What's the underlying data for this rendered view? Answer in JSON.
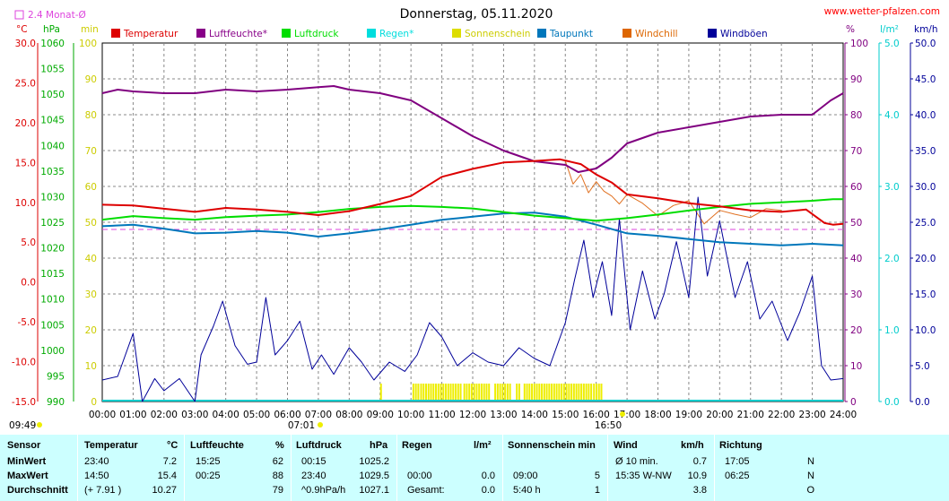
{
  "header": {
    "title": "Donnerstag, 05.11.2020",
    "website": "www.wetter-pfalzen.com",
    "avg_marker_label": "2.4 Monat-Ø",
    "left_units": {
      "temp": "°C",
      "pressure": "hPa",
      "minutes": "min"
    },
    "right_units": {
      "percent": "%",
      "rain": "l/m²",
      "wind": "km/h"
    },
    "sunrise": "07:01",
    "sunset": "16:50",
    "day_start": "09:49"
  },
  "legend": [
    {
      "label": "Temperatur",
      "color": "#dd0000"
    },
    {
      "label": "Luftfeuchte*",
      "color": "#880088"
    },
    {
      "label": "Luftdruck",
      "color": "#00dd00"
    },
    {
      "label": "Regen*",
      "color": "#00dddd"
    },
    {
      "label": "Sonnenschein",
      "color": "#dddd00"
    },
    {
      "label": "Taupunkt",
      "color": "#0077bb"
    },
    {
      "label": "Windchill",
      "color": "#dd6600"
    },
    {
      "label": "Windböen",
      "color": "#000099"
    }
  ],
  "colors": {
    "temp": "#dd0000",
    "humidity": "#800080",
    "pressure": "#00dd00",
    "rain": "#00cccc",
    "sun": "#eeee00",
    "dew": "#0077bb",
    "windchill": "#e07020",
    "gust": "#000099",
    "avg": "#dd44dd",
    "grid": "#888888",
    "statsBg": "#ccffff"
  },
  "chart_data": {
    "type": "line",
    "title": "Donnerstag, 05.11.2020",
    "x_ticks": [
      "00:00",
      "01:00",
      "02:00",
      "03:00",
      "04:00",
      "05:00",
      "06:00",
      "07:00",
      "08:00",
      "09:00",
      "10:00",
      "11:00",
      "12:00",
      "13:00",
      "14:00",
      "15:00",
      "16:00",
      "17:00",
      "18:00",
      "19:00",
      "20:00",
      "21:00",
      "22:00",
      "23:00",
      "24:00"
    ],
    "axes": {
      "temp": {
        "unit": "°C",
        "range": [
          -15,
          30
        ],
        "ticks": [
          "30.0",
          "25.0",
          "20.0",
          "15.0",
          "10.0",
          "5.0",
          "0.0",
          "-5.0",
          "-10.0",
          "-15.0"
        ]
      },
      "pressure": {
        "unit": "hPa",
        "range": [
          990,
          1060
        ],
        "ticks": [
          "1060",
          "1055",
          "1050",
          "1045",
          "1040",
          "1035",
          "1030",
          "1025",
          "1020",
          "1015",
          "1010",
          "1005",
          "1000",
          "995",
          "990"
        ]
      },
      "minutes": {
        "unit": "min",
        "range": [
          0,
          100
        ],
        "ticks": [
          "100",
          "90",
          "80",
          "70",
          "60",
          "50",
          "40",
          "30",
          "20",
          "10",
          "0"
        ]
      },
      "percent": {
        "unit": "%",
        "range": [
          0,
          100
        ],
        "ticks": [
          "100",
          "90",
          "80",
          "70",
          "60",
          "50",
          "40",
          "30",
          "20",
          "10",
          "0"
        ]
      },
      "rain": {
        "unit": "l/m²",
        "range": [
          0,
          5
        ],
        "ticks": [
          "5.0",
          "4.0",
          "3.0",
          "2.0",
          "1.0",
          "0.0"
        ]
      },
      "wind": {
        "unit": "km/h",
        "range": [
          0,
          50
        ],
        "ticks": [
          "50.0",
          "45.0",
          "40.0",
          "35.0",
          "30.0",
          "25.0",
          "20.0",
          "15.0",
          "10.0",
          "5.0",
          "0.0"
        ]
      }
    },
    "rain_monthly_avg": 2.4,
    "series": [
      {
        "name": "Temperatur",
        "axis": "temp",
        "points": [
          [
            0,
            9.7
          ],
          [
            1,
            9.6
          ],
          [
            2,
            9.2
          ],
          [
            3,
            8.8
          ],
          [
            4,
            9.3
          ],
          [
            5,
            9.1
          ],
          [
            6,
            8.8
          ],
          [
            7,
            8.4
          ],
          [
            8,
            8.9
          ],
          [
            9,
            9.8
          ],
          [
            10,
            10.8
          ],
          [
            11,
            13.2
          ],
          [
            12,
            14.2
          ],
          [
            13,
            15.0
          ],
          [
            14,
            15.2
          ],
          [
            14.83,
            15.4
          ],
          [
            15.5,
            14.8
          ],
          [
            16,
            13.5
          ],
          [
            16.5,
            12.5
          ],
          [
            17,
            11.0
          ],
          [
            18,
            10.5
          ],
          [
            19,
            9.9
          ],
          [
            20,
            9.5
          ],
          [
            21,
            9.0
          ],
          [
            22,
            8.8
          ],
          [
            22.8,
            9.1
          ],
          [
            23.4,
            7.4
          ],
          [
            23.67,
            7.2
          ],
          [
            24,
            7.3
          ]
        ]
      },
      {
        "name": "Luftfeuchte*",
        "axis": "percent",
        "points": [
          [
            0,
            86
          ],
          [
            0.5,
            87
          ],
          [
            1,
            86.5
          ],
          [
            2,
            86
          ],
          [
            3,
            86
          ],
          [
            4,
            87
          ],
          [
            5,
            86.5
          ],
          [
            6,
            87
          ],
          [
            7,
            87.7
          ],
          [
            7.5,
            88
          ],
          [
            8,
            87
          ],
          [
            9,
            86
          ],
          [
            10,
            84
          ],
          [
            11,
            79
          ],
          [
            12,
            74
          ],
          [
            13,
            70
          ],
          [
            14,
            67
          ],
          [
            15,
            66
          ],
          [
            15.42,
            64
          ],
          [
            16,
            65
          ],
          [
            16.5,
            68
          ],
          [
            17,
            72
          ],
          [
            18,
            75
          ],
          [
            19,
            76.5
          ],
          [
            20,
            78
          ],
          [
            21,
            79.5
          ],
          [
            22,
            80
          ],
          [
            23,
            80
          ],
          [
            23.6,
            84
          ],
          [
            24,
            86
          ]
        ]
      },
      {
        "name": "Luftdruck",
        "axis": "pressure",
        "points": [
          [
            0,
            1025.5
          ],
          [
            1,
            1026.2
          ],
          [
            2,
            1025.8
          ],
          [
            3,
            1025.5
          ],
          [
            4,
            1026.0
          ],
          [
            5,
            1026.3
          ],
          [
            6,
            1026.5
          ],
          [
            7,
            1027.0
          ],
          [
            8,
            1027.6
          ],
          [
            9,
            1028.0
          ],
          [
            10,
            1028.2
          ],
          [
            11,
            1028.0
          ],
          [
            12,
            1027.7
          ],
          [
            13,
            1027.0
          ],
          [
            14,
            1026.3
          ],
          [
            15,
            1025.8
          ],
          [
            16,
            1025.3
          ],
          [
            17,
            1025.8
          ],
          [
            18,
            1026.5
          ],
          [
            19,
            1027.3
          ],
          [
            20,
            1028.0
          ],
          [
            21,
            1028.6
          ],
          [
            22,
            1028.9
          ],
          [
            23,
            1029.2
          ],
          [
            23.67,
            1029.5
          ],
          [
            24,
            1029.5
          ]
        ]
      },
      {
        "name": "Taupunkt",
        "axis": "temp",
        "points": [
          [
            0,
            7.0
          ],
          [
            1,
            7.2
          ],
          [
            2,
            6.7
          ],
          [
            3,
            6.1
          ],
          [
            4,
            6.2
          ],
          [
            5,
            6.4
          ],
          [
            6,
            6.2
          ],
          [
            7,
            5.7
          ],
          [
            8,
            6.1
          ],
          [
            9,
            6.6
          ],
          [
            10,
            7.2
          ],
          [
            11,
            7.8
          ],
          [
            12,
            8.2
          ],
          [
            13,
            8.6
          ],
          [
            14,
            8.7
          ],
          [
            15,
            8.2
          ],
          [
            16,
            7.2
          ],
          [
            17,
            6.1
          ],
          [
            18,
            5.8
          ],
          [
            19,
            5.4
          ],
          [
            20,
            5.0
          ],
          [
            21,
            4.8
          ],
          [
            22,
            4.6
          ],
          [
            23,
            4.8
          ],
          [
            24,
            4.6
          ]
        ]
      },
      {
        "name": "Windchill",
        "axis": "temp",
        "points": [
          [
            15,
            15.2
          ],
          [
            15.25,
            12.3
          ],
          [
            15.5,
            13.5
          ],
          [
            15.75,
            11.2
          ],
          [
            16,
            12.6
          ],
          [
            16.25,
            11.4
          ],
          [
            16.5,
            10.8
          ],
          [
            16.75,
            9.8
          ],
          [
            17,
            11.0
          ],
          [
            17.5,
            9.9
          ],
          [
            18,
            8.3
          ],
          [
            18.5,
            9.6
          ],
          [
            19,
            10.2
          ],
          [
            19.5,
            7.3
          ],
          [
            20,
            9.0
          ],
          [
            20.5,
            8.5
          ],
          [
            21,
            8.1
          ],
          [
            21.5,
            9.2
          ],
          [
            22,
            9.0
          ]
        ]
      },
      {
        "name": "Windböen",
        "axis": "wind",
        "points": [
          [
            0,
            3.0
          ],
          [
            0.5,
            3.5
          ],
          [
            1,
            9.5
          ],
          [
            1.3,
            0
          ],
          [
            1.7,
            3.2
          ],
          [
            2,
            1.5
          ],
          [
            2.5,
            3.2
          ],
          [
            3,
            0
          ],
          [
            3.2,
            6.5
          ],
          [
            3.6,
            10.5
          ],
          [
            3.9,
            14.0
          ],
          [
            4.3,
            7.8
          ],
          [
            4.7,
            5.2
          ],
          [
            5,
            5.5
          ],
          [
            5.3,
            14.5
          ],
          [
            5.6,
            6.5
          ],
          [
            6,
            8.5
          ],
          [
            6.4,
            11.2
          ],
          [
            6.8,
            4.5
          ],
          [
            7.1,
            6.5
          ],
          [
            7.5,
            3.8
          ],
          [
            8,
            7.5
          ],
          [
            8.4,
            5.5
          ],
          [
            8.8,
            3.0
          ],
          [
            9.3,
            5.5
          ],
          [
            9.8,
            4.2
          ],
          [
            10.2,
            6.5
          ],
          [
            10.6,
            11.0
          ],
          [
            11,
            9.0
          ],
          [
            11.5,
            5.0
          ],
          [
            12,
            6.8
          ],
          [
            12.5,
            5.5
          ],
          [
            13,
            5.0
          ],
          [
            13.5,
            7.5
          ],
          [
            14,
            6.0
          ],
          [
            14.5,
            5.0
          ],
          [
            15,
            11.0
          ],
          [
            15.3,
            17.0
          ],
          [
            15.6,
            22.5
          ],
          [
            15.9,
            14.5
          ],
          [
            16.2,
            19.5
          ],
          [
            16.5,
            12.0
          ],
          [
            16.75,
            25.5
          ],
          [
            17.1,
            10.0
          ],
          [
            17.5,
            18.2
          ],
          [
            17.9,
            11.5
          ],
          [
            18.2,
            15.0
          ],
          [
            18.6,
            22.3
          ],
          [
            19.0,
            14.5
          ],
          [
            19.3,
            28.5
          ],
          [
            19.6,
            17.5
          ],
          [
            20,
            25.2
          ],
          [
            20.5,
            14.5
          ],
          [
            20.9,
            19.5
          ],
          [
            21.3,
            11.5
          ],
          [
            21.7,
            14.0
          ],
          [
            22.2,
            8.5
          ],
          [
            22.6,
            12.5
          ],
          [
            23,
            17.5
          ],
          [
            23.3,
            5.0
          ],
          [
            23.6,
            3.0
          ],
          [
            24,
            3.2
          ]
        ]
      }
    ],
    "sunshine_spans": [
      [
        9.0,
        9.08
      ],
      [
        10.05,
        10.25
      ],
      [
        10.3,
        11.05
      ],
      [
        11.1,
        11.6
      ],
      [
        11.7,
        12.55
      ],
      [
        12.7,
        13.25
      ],
      [
        13.4,
        13.55
      ],
      [
        13.65,
        15.85
      ],
      [
        15.9,
        16.2
      ]
    ]
  },
  "stats": {
    "headers": [
      {
        "label": "Sensor",
        "unit": ""
      },
      {
        "label": "Temperatur",
        "unit": "°C"
      },
      {
        "label": "Luftfeuchte",
        "unit": "%"
      },
      {
        "label": "Luftdruck",
        "unit": "hPa"
      },
      {
        "label": "Regen",
        "unit": "l/m²"
      },
      {
        "label": "Sonnenschein min",
        "unit": ""
      },
      {
        "label": "Wind",
        "unit": "km/h"
      },
      {
        "label": "Richtung",
        "unit": ""
      }
    ],
    "rows": [
      {
        "label": "MinWert",
        "cells": [
          "23:40",
          "7.2",
          "15:25",
          "62",
          "00:15",
          "1025.2",
          "",
          "",
          "",
          "",
          "Ø 10 min.",
          "0.7",
          "17:05",
          "N"
        ]
      },
      {
        "label": "MaxWert",
        "cells": [
          "14:50",
          "15.4",
          "00:25",
          "88",
          "23:40",
          "1029.5",
          "00:00",
          "0.0",
          "09:00",
          "5",
          "15:35   W-NW",
          "10.9",
          "06:25",
          "N"
        ]
      },
      {
        "label": "Durchschnitt",
        "cells": [
          "(+ 7.91 )",
          "10.27",
          "",
          "79",
          "^0.9hPa/h",
          "1027.1",
          "Gesamt:",
          "0.0",
          "5:40 h",
          "1",
          "",
          "3.8",
          "",
          "O"
        ]
      }
    ]
  }
}
